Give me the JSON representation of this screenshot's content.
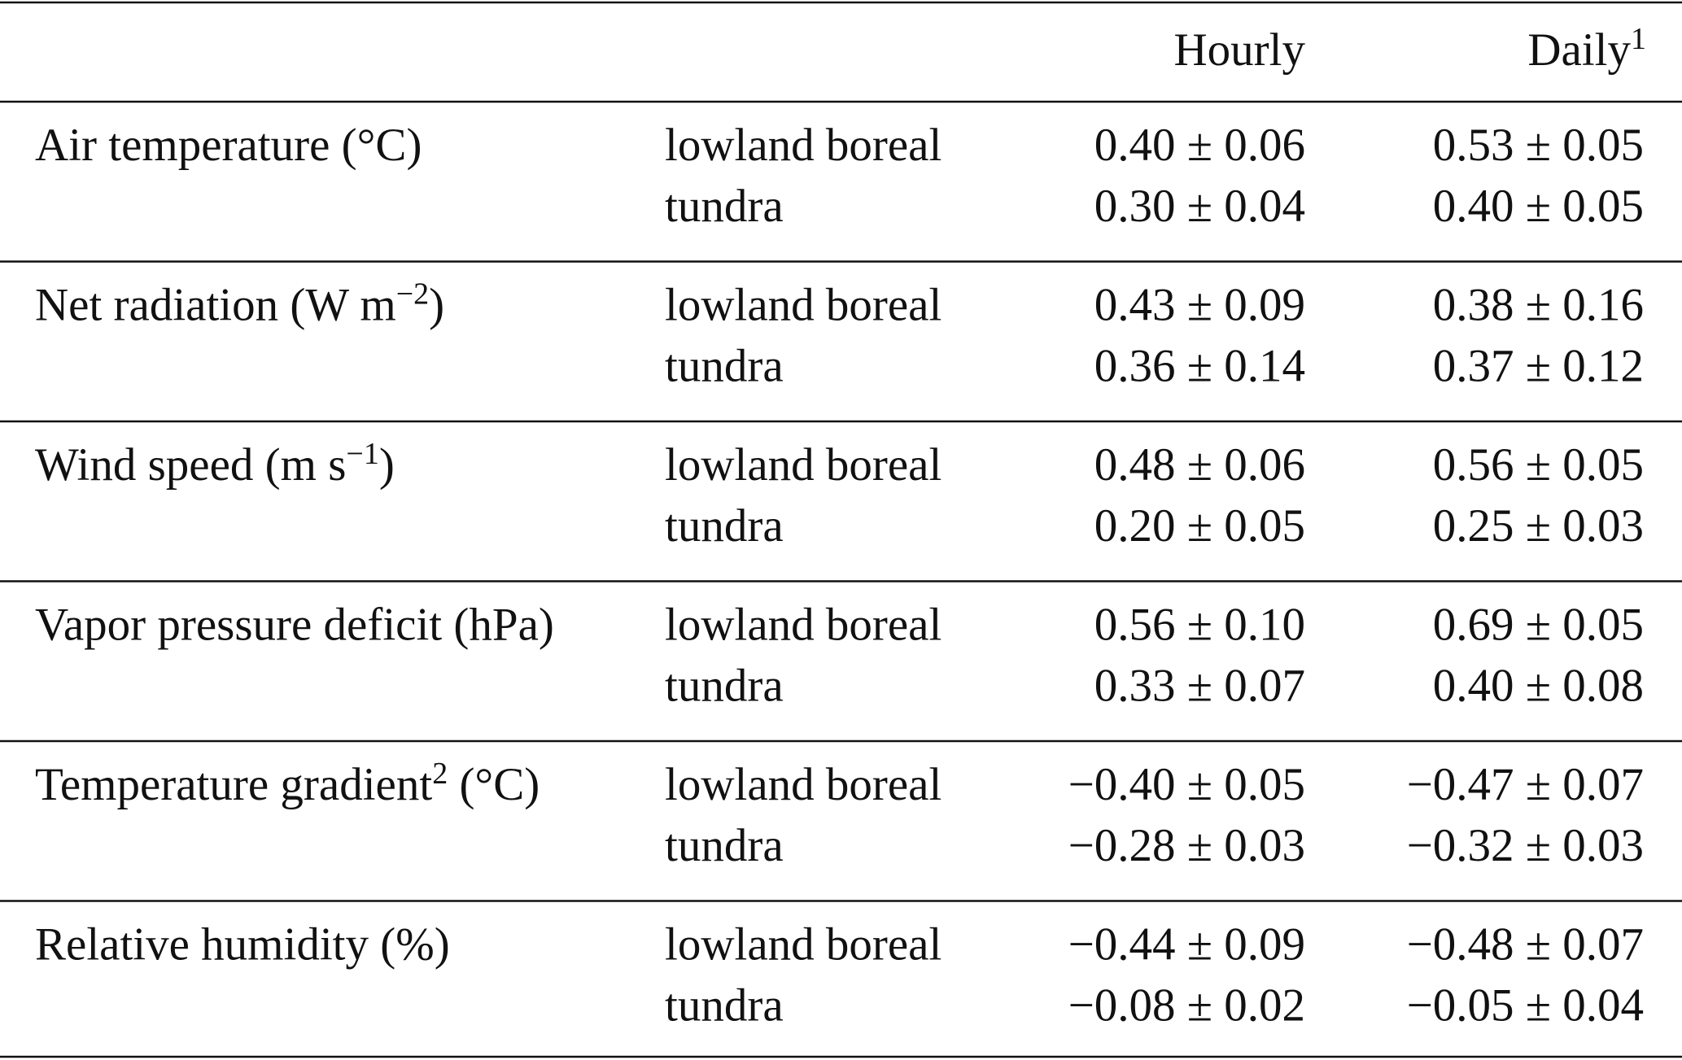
{
  "header": {
    "hourly": "Hourly",
    "daily": "Daily",
    "daily_sup": "1"
  },
  "groups": [
    {
      "label": "Air temperature (°C)",
      "rows": [
        [
          "lowland boreal",
          "0.40 ± 0.06",
          "0.53 ± 0.05"
        ],
        [
          "tundra",
          "0.30 ± 0.04",
          "0.40 ± 0.05"
        ]
      ]
    },
    {
      "label": "Net radiation (W m",
      "sup": "−2",
      "tail": ")",
      "rows": [
        [
          "lowland boreal",
          "0.43 ± 0.09",
          "0.38 ± 0.16"
        ],
        [
          "tundra",
          "0.36 ± 0.14",
          "0.37 ± 0.12"
        ]
      ]
    },
    {
      "label": "Wind speed (m s",
      "sup": "−1",
      "tail": ")",
      "rows": [
        [
          "lowland boreal",
          "0.48 ± 0.06",
          "0.56 ± 0.05"
        ],
        [
          "tundra",
          "0.20 ± 0.05",
          "0.25 ± 0.03"
        ]
      ]
    },
    {
      "label": "Vapor pressure deficit (hPa)",
      "rows": [
        [
          "lowland boreal",
          "0.56 ± 0.10",
          "0.69 ± 0.05"
        ],
        [
          "tundra",
          "0.33 ± 0.07",
          "0.40 ± 0.08"
        ]
      ]
    },
    {
      "label": "Temperature gradient",
      "sup": "2",
      "tail": " (°C)",
      "rows": [
        [
          "lowland boreal",
          "−0.40 ± 0.05",
          "−0.47 ± 0.07"
        ],
        [
          "tundra",
          "−0.28 ± 0.03",
          "−0.32 ± 0.03"
        ]
      ]
    },
    {
      "label": "Relative humidity (%)",
      "rows": [
        [
          "lowland boreal",
          "−0.44 ± 0.09",
          "−0.48 ± 0.07"
        ],
        [
          "tundra",
          "−0.08 ± 0.02",
          "−0.05 ± 0.04"
        ]
      ]
    }
  ]
}
